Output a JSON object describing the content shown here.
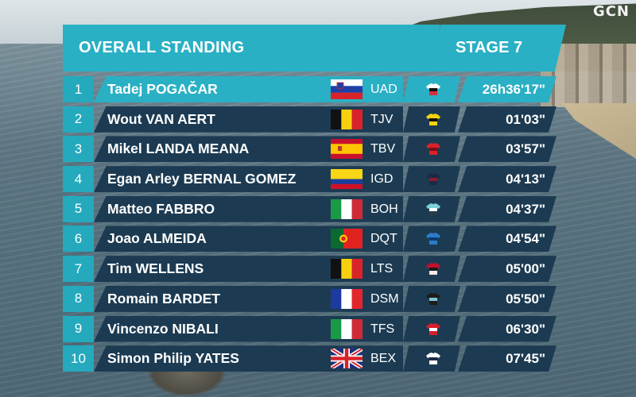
{
  "broadcast": {
    "logo": "GCN"
  },
  "panel": {
    "title": "OVERALL STANDING",
    "stage": "STAGE 7"
  },
  "standings": [
    {
      "pos": "1",
      "name": "Tadej POGAČAR",
      "team": "UAD",
      "time": "26h36'17\"",
      "flag": "slovenia",
      "jersey": [
        "#ffffff",
        "#111111",
        "#d11a2a"
      ]
    },
    {
      "pos": "2",
      "name": "Wout VAN AERT",
      "team": "TJV",
      "time": "01'03\"",
      "flag": "belgium",
      "jersey": [
        "#f5d20f",
        "#111111",
        "#f5d20f"
      ]
    },
    {
      "pos": "3",
      "name": "Mikel LANDA MEANA",
      "team": "TBV",
      "time": "03'57\"",
      "flag": "spain",
      "jersey": [
        "#d8232a",
        "#7a1016",
        "#d8232a"
      ]
    },
    {
      "pos": "4",
      "name": "Egan Arley BERNAL GOMEZ",
      "team": "IGD",
      "time": "04'13\"",
      "flag": "colombia",
      "jersey": [
        "#1c2a48",
        "#8a1d2c",
        "#1c2a48"
      ]
    },
    {
      "pos": "5",
      "name": "Matteo FABBRO",
      "team": "BOH",
      "time": "04'37\"",
      "flag": "italy",
      "jersey": [
        "#7ad1d8",
        "#ffffff",
        "#1d2d3a"
      ]
    },
    {
      "pos": "6",
      "name": "Joao ALMEIDA",
      "team": "DQT",
      "time": "04'54\"",
      "flag": "portugal",
      "jersey": [
        "#2e7cc8",
        "#0d3a75",
        "#2e7cc8"
      ]
    },
    {
      "pos": "7",
      "name": "Tim WELLENS",
      "team": "LTS",
      "time": "05'00\"",
      "flag": "belgium",
      "jersey": [
        "#c2102e",
        "#1a1a1a",
        "#ffffff"
      ]
    },
    {
      "pos": "8",
      "name": "Romain BARDET",
      "team": "DSM",
      "time": "05'50\"",
      "flag": "france",
      "jersey": [
        "#1d1d1d",
        "#7fc3d6",
        "#1d1d1d"
      ]
    },
    {
      "pos": "9",
      "name": "Vincenzo NIBALI",
      "team": "TFS",
      "time": "06'30\"",
      "flag": "italy",
      "jersey": [
        "#d31f2b",
        "#ffffff",
        "#d31f2b"
      ]
    },
    {
      "pos": "10",
      "name": "Simon Philip YATES",
      "team": "BEX",
      "time": "07'45\"",
      "flag": "united-kingdom",
      "jersey": [
        "#ffffff",
        "#1c2a48",
        "#ffffff"
      ]
    }
  ],
  "colors": {
    "accent": "#2ab0c4",
    "row_dark": "#1c3b52",
    "position_bg": "#24a9bd"
  }
}
